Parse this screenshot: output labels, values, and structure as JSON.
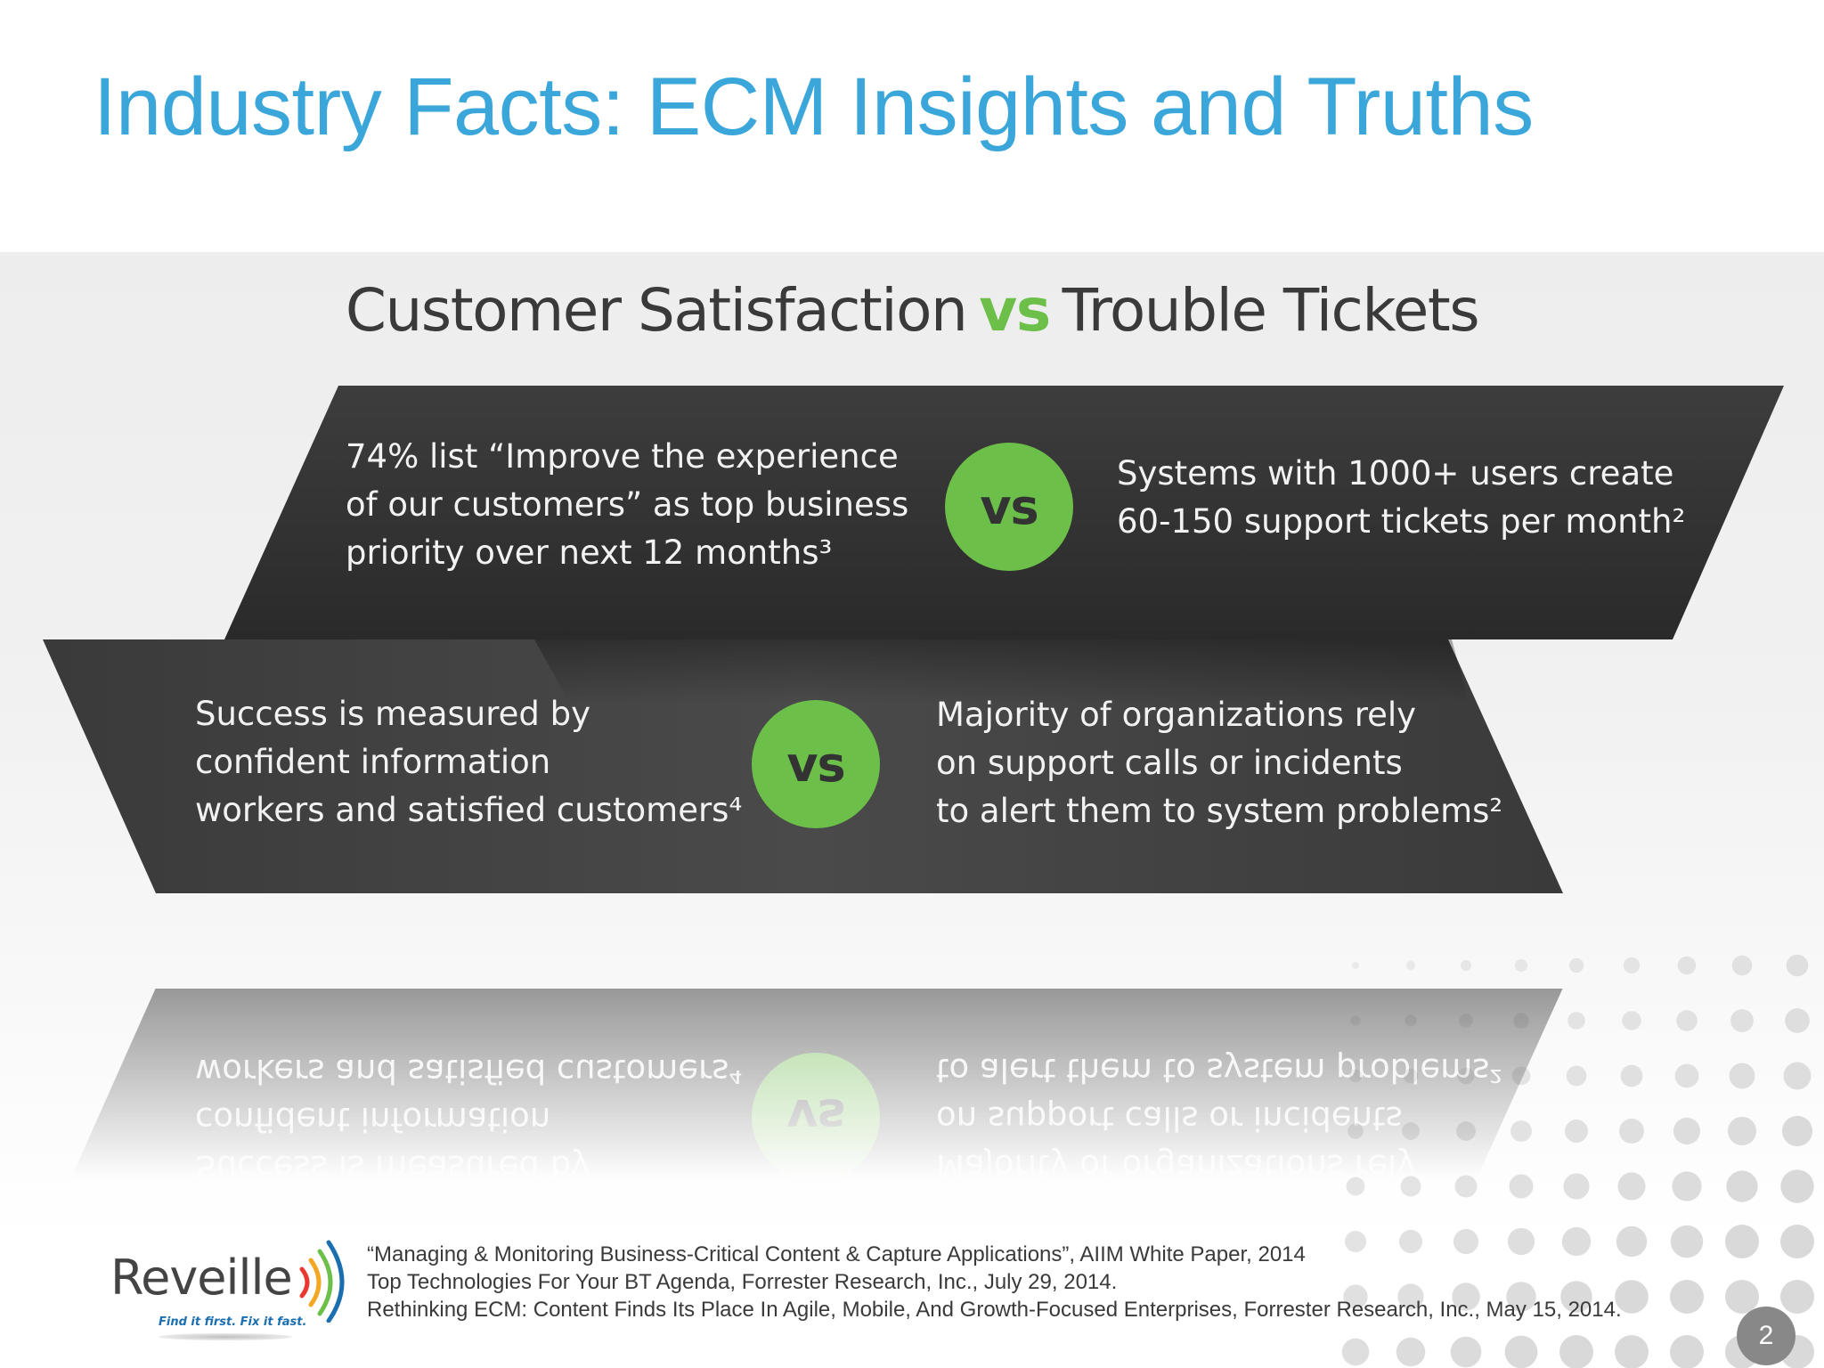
{
  "slide": {
    "title": "Industry Facts: ECM Insights and Truths",
    "page_number": "2"
  },
  "infographic": {
    "heading_left": "Customer Satisfaction",
    "heading_vs": "vs",
    "heading_right": "Trouble Tickets",
    "vs_label": "vs",
    "row1": {
      "left_lines": [
        "74% list “Improve the experience",
        "of our customers” as top business",
        "priority over next 12 months³"
      ],
      "right_lines": [
        "Systems with 1000+ users   create",
        "60-150 support tickets     per month²"
      ]
    },
    "row2": {
      "left_lines": [
        "Success is measured by",
        "confident information",
        "workers and satisfied customers⁴"
      ],
      "right_lines": [
        "Majority of organizations rely",
        "on support calls    or incidents",
        "to alert them    to system problems²"
      ]
    }
  },
  "logo": {
    "wordmark": "Reveille",
    "tagline": "Find it first. Fix it fast."
  },
  "references": [
    "“Managing & Monitoring Business-Critical Content & Capture Applications”, AIIM White Paper, 2014",
    "Top Technologies For Your BT Agenda, Forrester Research, Inc., July 29, 2014.",
    "Rethinking ECM: Content Finds Its Place In Agile, Mobile, And Growth-Focused Enterprises, Forrester Research, Inc., May 15, 2014."
  ],
  "colors": {
    "title_blue": "#3aa6da",
    "vs_green": "#6cc04a",
    "band_dark": "#333333",
    "logo_blue": "#1b6fb0"
  }
}
